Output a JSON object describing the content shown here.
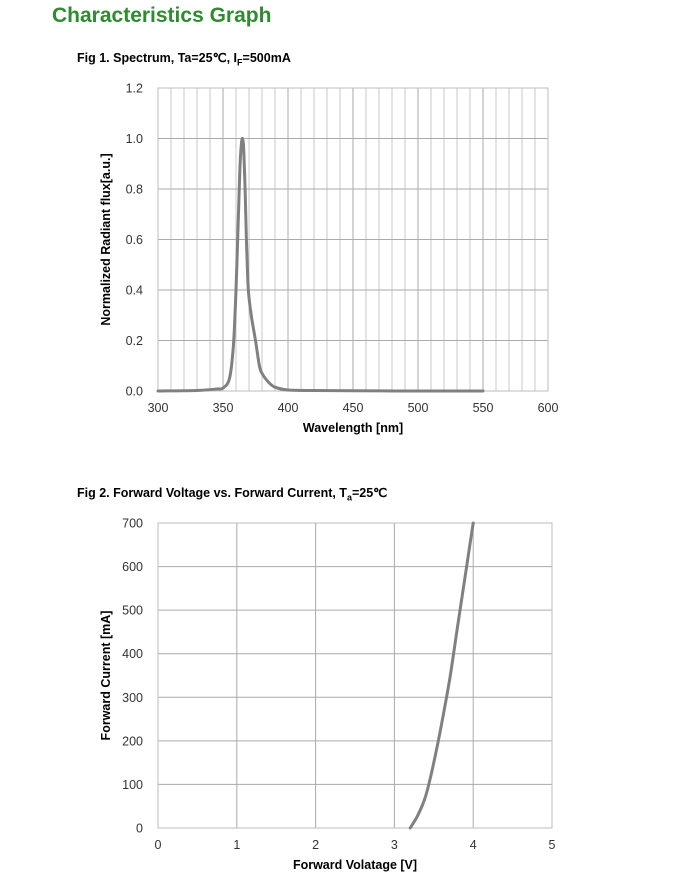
{
  "page": {
    "title": "Characteristics Graph"
  },
  "colors": {
    "title": "#2e8b2e",
    "curve": "#808080",
    "grid": "#c8c8c8",
    "axis": "#bdbdbd"
  },
  "chart_data": [
    {
      "type": "line",
      "caption": {
        "prefix": "Fig 1. Spectrum, Ta=25℃, I",
        "sub": "F",
        "suffix": "=500mA"
      },
      "xlabel": "Wavelength [nm]",
      "ylabel": "Normalized Radiant flux[a.u.]",
      "xlim": [
        300,
        600
      ],
      "ylim": [
        0,
        1.2
      ],
      "x_ticks": [
        "300",
        "350",
        "400",
        "450",
        "500",
        "550",
        "600"
      ],
      "y_ticks": [
        "0.0",
        "0.2",
        "0.4",
        "0.6",
        "0.8",
        "1.0",
        "1.2"
      ],
      "grid": true,
      "minor_x_step": 10,
      "series": [
        {
          "x": [
            300,
            330,
            345,
            350,
            355,
            358,
            360,
            362,
            363,
            364,
            365,
            366,
            367,
            368,
            369,
            370,
            372,
            375,
            378,
            380,
            385,
            390,
            400,
            420,
            450,
            500,
            550
          ],
          "y": [
            0.0,
            0.002,
            0.008,
            0.012,
            0.05,
            0.18,
            0.4,
            0.72,
            0.88,
            0.97,
            1.0,
            0.95,
            0.8,
            0.6,
            0.45,
            0.37,
            0.29,
            0.2,
            0.1,
            0.07,
            0.035,
            0.015,
            0.004,
            0.002,
            0.001,
            0.0,
            0.0
          ]
        }
      ]
    },
    {
      "type": "line",
      "caption": {
        "prefix": "Fig 2. Forward Voltage vs. Forward Current, T",
        "sub": "a",
        "suffix": "=25℃"
      },
      "xlabel": "Forward  Volatage [V]",
      "ylabel": "Forward Current [mA]",
      "xlim": [
        0,
        5
      ],
      "ylim": [
        0,
        700
      ],
      "x_ticks": [
        "0",
        "1",
        "2",
        "3",
        "4",
        "5"
      ],
      "y_ticks": [
        "0",
        "100",
        "200",
        "300",
        "400",
        "500",
        "600",
        "700"
      ],
      "grid": true,
      "series": [
        {
          "x": [
            3.2,
            3.3,
            3.4,
            3.5,
            3.6,
            3.7,
            3.8,
            3.9,
            4.0
          ],
          "y": [
            0,
            30,
            75,
            150,
            240,
            340,
            460,
            580,
            700
          ]
        }
      ]
    }
  ]
}
